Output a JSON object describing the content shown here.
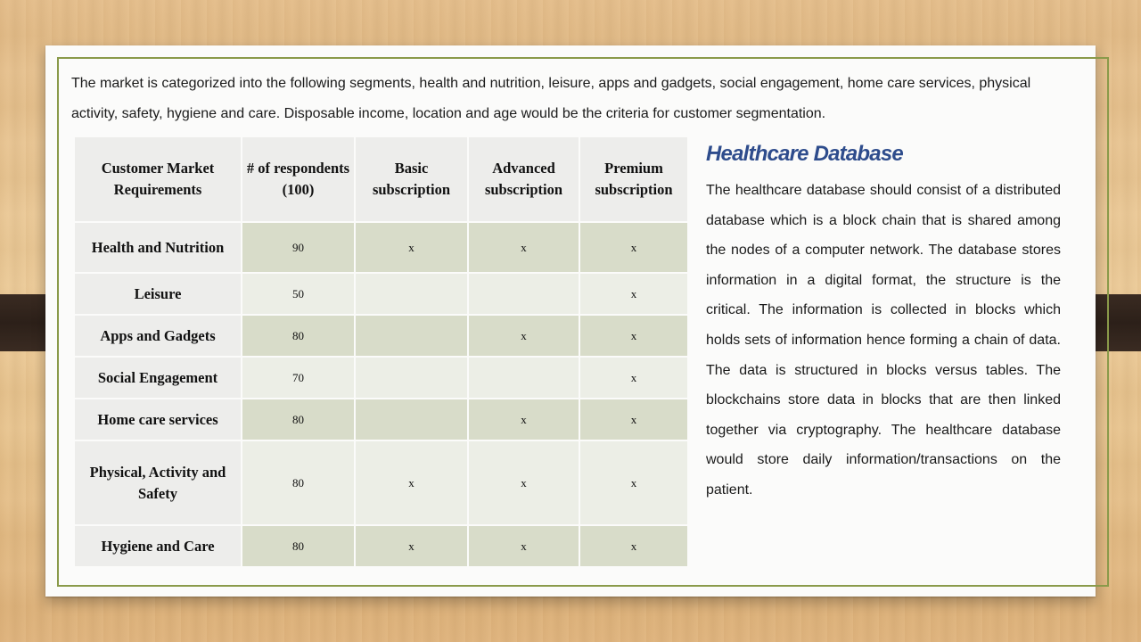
{
  "intro_text": "The market is categorized into the following segments, health and nutrition, leisure, apps and gadgets, social engagement, home care services, physical activity, safety, hygiene and care.  Disposable income, location and age would be the criteria for customer segmentation.",
  "table": {
    "headers": [
      "Customer Market Requirements",
      "# of respondents (100)",
      "Basic subscription",
      "Advanced subscription",
      "Premium subscription"
    ],
    "rows": [
      {
        "requirement": "Health and Nutrition",
        "respondents": "90",
        "basic": "x",
        "advanced": "x",
        "premium": "x"
      },
      {
        "requirement": "Leisure",
        "respondents": "50",
        "basic": "",
        "advanced": "",
        "premium": "x"
      },
      {
        "requirement": "Apps and Gadgets",
        "respondents": "80",
        "basic": "",
        "advanced": "x",
        "premium": "x"
      },
      {
        "requirement": "Social Engagement",
        "respondents": "70",
        "basic": "",
        "advanced": "",
        "premium": "x"
      },
      {
        "requirement": "Home care services",
        "respondents": "80",
        "basic": "",
        "advanced": "x",
        "premium": "x"
      },
      {
        "requirement": "Physical, Activity and Safety",
        "respondents": "80",
        "basic": "x",
        "advanced": "x",
        "premium": "x"
      },
      {
        "requirement": "Hygiene and Care",
        "respondents": "80",
        "basic": "x",
        "advanced": "x",
        "premium": "x"
      }
    ]
  },
  "sidebar": {
    "title": "Healthcare Database",
    "body": "The healthcare database should consist of a distributed database which is a block chain that is shared among the nodes of a computer network. The database stores information in a digital format, the structure is the critical. The information is collected in blocks which holds sets of information hence forming a chain of data. The data is structured in blocks versus tables.    The blockchains store data in blocks that are then linked together via cryptography.  The healthcare database would store daily information/transactions on the patient."
  },
  "colors": {
    "frame_border": "#8a9a4a",
    "title_blue": "#2e4c8c",
    "row_dark": "#d8dcc9",
    "row_light": "#eceee6",
    "header_bg": "#ededeb"
  }
}
